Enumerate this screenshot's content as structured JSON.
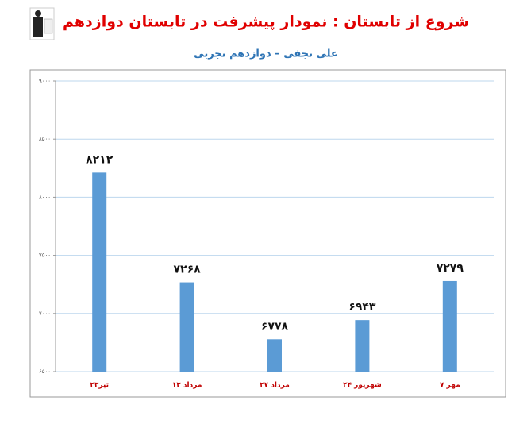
{
  "chart_data": {
    "type": "bar",
    "title": "شروع از تابستان : نمودار پیشرفت در تابستان دوازدهم",
    "subtitle": "علی نجفی – دوازدهم تجربی",
    "categories": [
      "۲۳تیر",
      "۱۳ مرداد",
      "۲۷ مرداد",
      "۲۴ شهریور",
      "۷ مهر"
    ],
    "values": [
      8212,
      7268,
      6778,
      6943,
      7279
    ],
    "value_labels": [
      "۸۲۱۲",
      "۷۲۶۸",
      "۶۷۷۸",
      "۶۹۴۳",
      "۷۲۷۹"
    ],
    "color": "#5b9bd5",
    "ylim": [
      6500,
      9000
    ],
    "yticks": [
      {
        "value": 6500,
        "label": "۶۵۰۰"
      },
      {
        "value": 7000,
        "label": "۷۰۰۰"
      },
      {
        "value": 7500,
        "label": "۷۵۰۰"
      },
      {
        "value": 8000,
        "label": "۸۰۰۰"
      },
      {
        "value": 8500,
        "label": "۸۵۰۰"
      },
      {
        "value": 9000,
        "label": "۹۰۰۰"
      }
    ],
    "grid": true
  }
}
